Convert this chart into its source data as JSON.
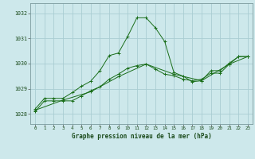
{
  "title": "Graphe pression niveau de la mer (hPa)",
  "bg_color": "#cde8eb",
  "grid_color": "#aacdd2",
  "line_color": "#1a6e1a",
  "xlim": [
    -0.5,
    23.5
  ],
  "ylim": [
    1027.6,
    1032.4
  ],
  "xticks": [
    0,
    1,
    2,
    3,
    4,
    5,
    6,
    7,
    8,
    9,
    10,
    11,
    12,
    13,
    14,
    15,
    16,
    17,
    18,
    19,
    20,
    21,
    22,
    23
  ],
  "yticks": [
    1028,
    1029,
    1030,
    1031,
    1032
  ],
  "series1": {
    "x": [
      0,
      1,
      2,
      3,
      4,
      5,
      6,
      7,
      8,
      9,
      10,
      11,
      12,
      13,
      14,
      15,
      16,
      17,
      18,
      19,
      20,
      21,
      22,
      23
    ],
    "y": [
      1028.2,
      1028.62,
      1028.62,
      1028.62,
      1028.85,
      1029.1,
      1029.3,
      1029.72,
      1030.32,
      1030.42,
      1031.08,
      1031.82,
      1031.82,
      1031.42,
      1030.88,
      1029.65,
      1029.5,
      1029.28,
      1029.32,
      1029.72,
      1029.72,
      1030.02,
      1030.28,
      1030.28
    ]
  },
  "series2": {
    "x": [
      0,
      1,
      2,
      3,
      4,
      5,
      6,
      7,
      8,
      9,
      10,
      11,
      12,
      13,
      14,
      15,
      16,
      17,
      18,
      19,
      20,
      21,
      22,
      23
    ],
    "y": [
      1028.1,
      1028.52,
      1028.52,
      1028.52,
      1028.52,
      1028.72,
      1028.92,
      1029.08,
      1029.38,
      1029.58,
      1029.82,
      1029.92,
      1029.98,
      1029.78,
      1029.58,
      1029.52,
      1029.38,
      1029.32,
      1029.38,
      1029.62,
      1029.62,
      1029.98,
      1030.28,
      1030.28
    ]
  },
  "series3": {
    "x": [
      0,
      3,
      6,
      9,
      12,
      15,
      18,
      21,
      23
    ],
    "y": [
      1028.15,
      1028.55,
      1028.88,
      1029.48,
      1029.98,
      1029.58,
      1029.32,
      1029.98,
      1030.28
    ]
  }
}
